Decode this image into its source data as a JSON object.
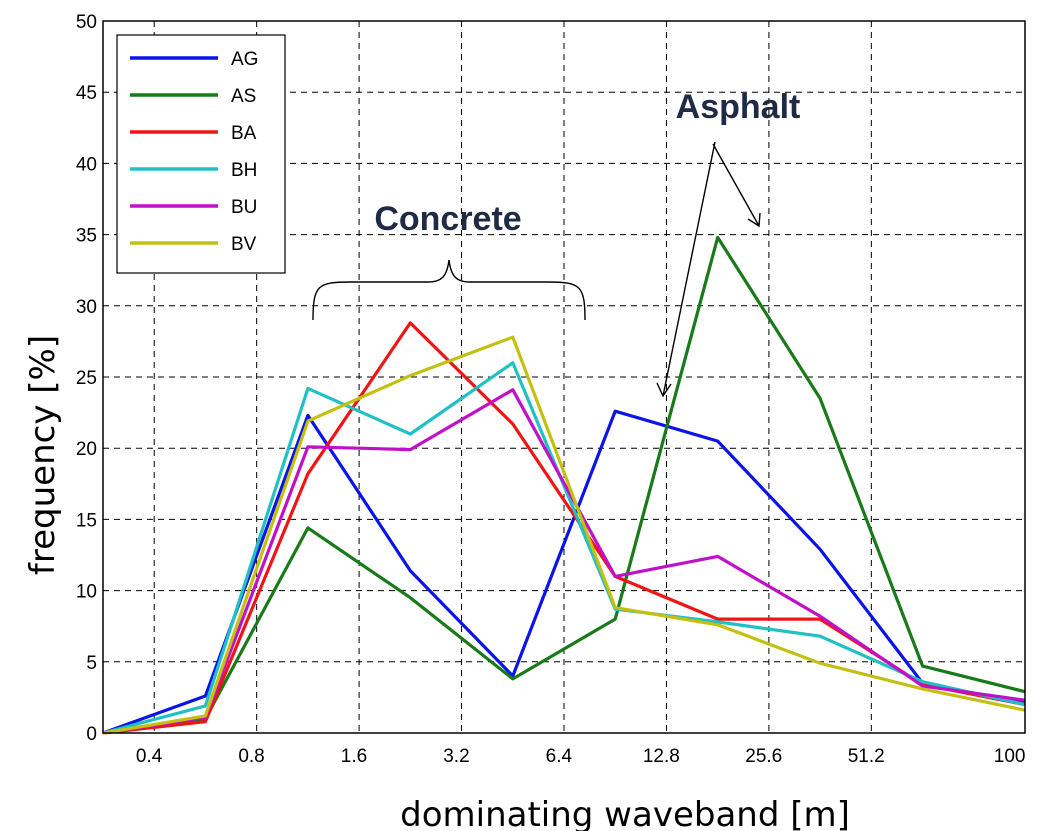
{
  "chart_data": {
    "type": "line",
    "xlabel": "dominating waveband [m]",
    "ylabel": "frequency  [%]",
    "ylim": [
      0,
      50
    ],
    "yticks": [
      0,
      5,
      10,
      15,
      20,
      25,
      30,
      35,
      40,
      45,
      50
    ],
    "xtick_labels": [
      "0.4",
      "0.8",
      "1.6",
      "3.2",
      "6.4",
      "12.8",
      "25.6",
      "51.2",
      "100"
    ],
    "x": [
      1,
      2,
      3,
      4,
      5,
      6,
      7,
      8,
      9,
      10
    ],
    "grid": true,
    "legend_position": "top-left",
    "series": [
      {
        "name": "AG",
        "color": "#0a14e6",
        "values": [
          0,
          2.6,
          22.3,
          11.4,
          4.0,
          22.6,
          20.5,
          12.9,
          3.5,
          2.1
        ]
      },
      {
        "name": "AS",
        "color": "#187a18",
        "values": [
          0,
          1.0,
          14.4,
          9.5,
          3.8,
          8.0,
          34.8,
          23.5,
          4.7,
          2.9
        ]
      },
      {
        "name": "BA",
        "color": "#f01414",
        "values": [
          0,
          0.8,
          18.2,
          28.8,
          21.7,
          11.0,
          8.0,
          8.0,
          3.4,
          2.0
        ]
      },
      {
        "name": "BH",
        "color": "#20c0c4",
        "values": [
          0,
          1.9,
          24.2,
          21.0,
          26.0,
          8.7,
          7.8,
          6.8,
          3.6,
          2.0
        ]
      },
      {
        "name": "BU",
        "color": "#c010c8",
        "values": [
          0,
          1.1,
          20.1,
          19.9,
          24.1,
          11.0,
          12.4,
          8.2,
          3.3,
          2.3
        ]
      },
      {
        "name": "BV",
        "color": "#c4c010",
        "values": [
          0,
          1.2,
          21.9,
          25.1,
          27.8,
          8.8,
          7.6,
          4.9,
          3.1,
          1.6
        ]
      }
    ],
    "annotations": [
      {
        "text": "Concrete"
      },
      {
        "text": "Asphalt"
      }
    ]
  }
}
